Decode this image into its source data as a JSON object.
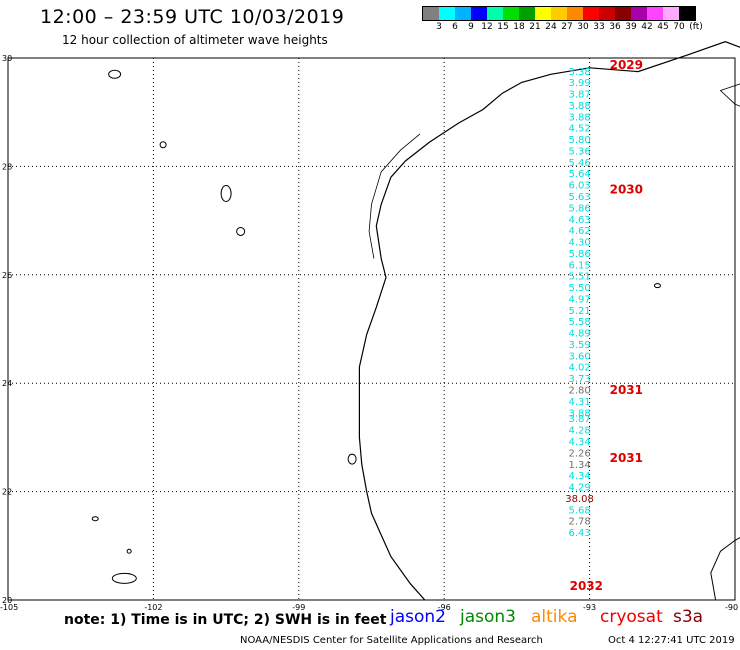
{
  "header": {
    "title": "12:00 – 23:59 UTC 10/03/2019",
    "subtitle": "12 hour collection of altimeter wave heights"
  },
  "color_scale": {
    "colors": [
      "#808080",
      "#00ffff",
      "#00b2ff",
      "#0000ff",
      "#00ffaa",
      "#00e000",
      "#00a000",
      "#ffff00",
      "#ffcc00",
      "#ff8800",
      "#ff0000",
      "#cc0000",
      "#880000",
      "#aa00aa",
      "#ff44ff",
      "#ffaaff",
      "#000000"
    ],
    "labels": [
      "3",
      "6",
      "9",
      "12",
      "15",
      "18",
      "21",
      "24",
      "27",
      "30",
      "33",
      "36",
      "39",
      "42",
      "45",
      "70",
      "(ft)"
    ]
  },
  "axes": {
    "lat_labels": [
      "30",
      "28",
      "26",
      "24",
      "22",
      "20"
    ],
    "lon_labels": [
      "-105",
      "-102",
      "-99",
      "-96",
      "-93",
      "-90"
    ]
  },
  "track": {
    "color": "#00dddd",
    "points": [
      {
        "v": "3.38",
        "lat": 29.69
      },
      {
        "v": "3.99",
        "lat": 29.48
      },
      {
        "v": "3.87",
        "lat": 29.27
      },
      {
        "v": "3.88",
        "lat": 29.06
      },
      {
        "v": "3.88",
        "lat": 28.85
      },
      {
        "v": "4.52",
        "lat": 28.64
      },
      {
        "v": "5.80",
        "lat": 28.43
      },
      {
        "v": "5.36",
        "lat": 28.22
      },
      {
        "v": "5.46",
        "lat": 28.01
      },
      {
        "v": "5.64",
        "lat": 27.8
      },
      {
        "v": "6.03",
        "lat": 27.59
      },
      {
        "v": "5.63",
        "lat": 27.38
      },
      {
        "v": "5.86",
        "lat": 27.17
      },
      {
        "v": "4.63",
        "lat": 26.96
      },
      {
        "v": "4.62",
        "lat": 26.75
      },
      {
        "v": "4.30",
        "lat": 26.54
      },
      {
        "v": "5.86",
        "lat": 26.33
      },
      {
        "v": "6.15",
        "lat": 26.12
      },
      {
        "v": "5.51",
        "lat": 25.91
      },
      {
        "v": "5.50",
        "lat": 25.7
      },
      {
        "v": "4.97",
        "lat": 25.49
      },
      {
        "v": "5.21",
        "lat": 25.28
      },
      {
        "v": "5.58",
        "lat": 25.07
      },
      {
        "v": "4.89",
        "lat": 24.86
      },
      {
        "v": "3.59",
        "lat": 24.65
      },
      {
        "v": "3.60",
        "lat": 24.44
      },
      {
        "v": "4.02",
        "lat": 24.23
      },
      {
        "v": "3.73",
        "lat": 24.02
      },
      {
        "v": "2.80",
        "lat": 23.81,
        "color": "#707070"
      },
      {
        "v": "4.31",
        "lat": 23.6
      },
      {
        "v": "3.88",
        "lat": 23.39
      },
      {
        "v": "3.87",
        "lat": 23.28
      },
      {
        "v": "4.28",
        "lat": 23.07
      },
      {
        "v": "4.34",
        "lat": 22.86
      },
      {
        "v": "2.26",
        "lat": 22.65,
        "color": "#707070"
      },
      {
        "v": "1.34",
        "lat": 22.44,
        "color": "#707070"
      },
      {
        "v": "4.34",
        "lat": 22.23
      },
      {
        "v": "4.29",
        "lat": 22.02
      },
      {
        "v": "38.08",
        "lat": 21.81,
        "color": "#880000"
      },
      {
        "v": "5.68",
        "lat": 21.6
      },
      {
        "v": "2.78",
        "lat": 21.39,
        "color": "#707070"
      },
      {
        "v": "6.43",
        "lat": 21.18
      }
    ]
  },
  "times": [
    {
      "label": "2029",
      "lat": 29.8
    },
    {
      "label": "2030",
      "lat": 27.5
    },
    {
      "label": "2031",
      "lat": 23.8
    },
    {
      "label": "2031",
      "lat": 22.55
    },
    {
      "label": "2032",
      "lat": 20.18
    }
  ],
  "note": "note: 1) Time is in UTC; 2) SWH is in feet",
  "legend": [
    {
      "name": "jason2",
      "color": "#0000ff"
    },
    {
      "name": "jason3",
      "color": "#008800"
    },
    {
      "name": "altika",
      "color": "#ff8800"
    },
    {
      "name": "cryosat",
      "color": "#ee0000"
    },
    {
      "name": "s3a",
      "color": "#880000"
    }
  ],
  "footer": {
    "agency": "NOAA/NESDIS Center for Satellite Applications and Research",
    "timestamp": "Oct  4 12:27:41 UTC 2019"
  }
}
